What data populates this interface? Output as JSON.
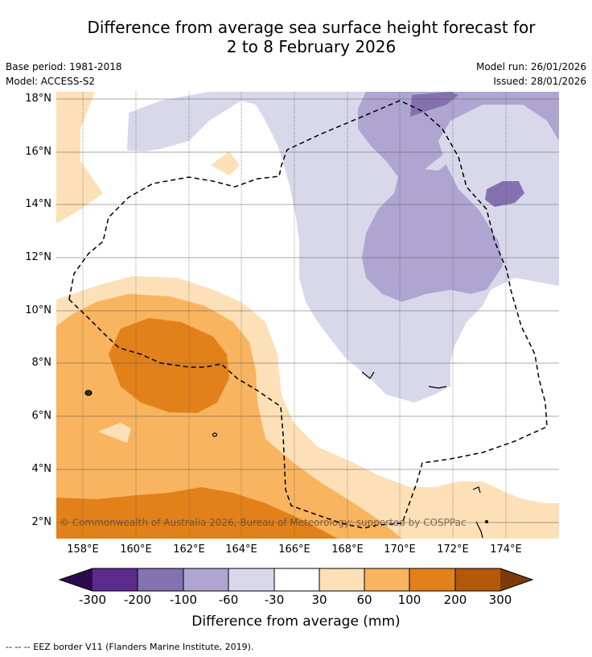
{
  "title_line1": "Difference from average sea surface height forecast for",
  "title_line2": "2 to 8 February 2026",
  "meta": {
    "base_period": "Base period: 1981-2018",
    "model": "Model: ACCESS-S2",
    "model_run": "Model run: 26/01/2026",
    "issued": "Issued: 28/01/2026"
  },
  "lat_labels": [
    "18°N",
    "16°N",
    "14°N",
    "12°N",
    "10°N",
    "8°N",
    "6°N",
    "4°N",
    "2°N"
  ],
  "lon_labels": [
    "158°E",
    "160°E",
    "162°E",
    "164°E",
    "166°E",
    "168°E",
    "170°E",
    "172°E",
    "174°E"
  ],
  "copyright": "© Commonwealth of Australia 2026, Bureau of Meteorology; supported by COSPPac",
  "colorbar": {
    "labels": [
      "-300",
      "-200",
      "-100",
      "-60",
      "-30",
      "30",
      "60",
      "100",
      "200",
      "300"
    ],
    "colors": {
      "below_-300": "#2d0a4e",
      "-300_-200": "#5b2a8c",
      "-200_-100": "#8471b0",
      "-100_-60": "#aea6d1",
      "-60_-30": "#d9d8eb",
      "-30_30": "#ffffff",
      "30_60": "#fde0b7",
      "60_100": "#f9b45f",
      "100_200": "#e2811a",
      "200_300": "#b4580a",
      "above_300": "#7a3a0c"
    },
    "title": "Difference from average (mm)"
  },
  "footnote": "-- -- -- EEZ border V11 (Flanders Marine Institute, 2019)."
}
